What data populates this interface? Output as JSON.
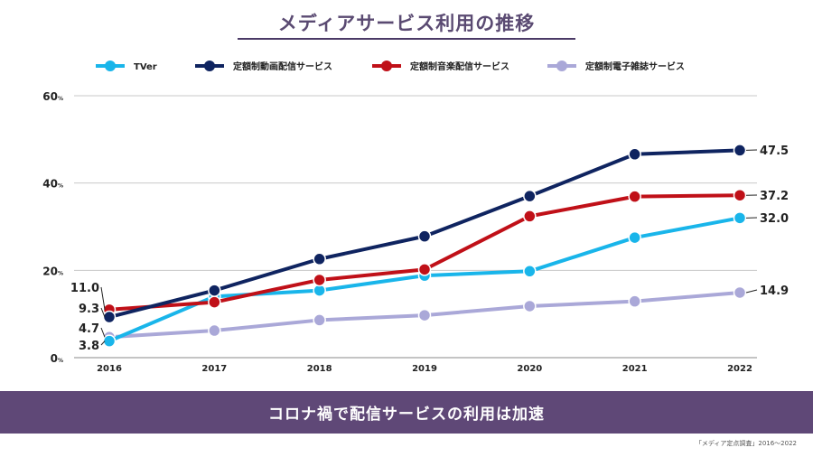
{
  "title": "メディアサービス利用の推移",
  "banner_text": "コロナ禍で配信サービスの利用は加速",
  "source_note": "「メディア定点調査」2016～2022",
  "chart_data": {
    "type": "line",
    "x": [
      "2016",
      "2017",
      "2018",
      "2019",
      "2020",
      "2021",
      "2022"
    ],
    "y_ticks": [
      {
        "value": 0,
        "label": "0",
        "unit": "%"
      },
      {
        "value": 20,
        "label": "20",
        "unit": "%"
      },
      {
        "value": 40,
        "label": "40",
        "unit": "%"
      },
      {
        "value": 60,
        "label": "60",
        "unit": "%"
      }
    ],
    "ylim": [
      0,
      60
    ],
    "grid": true,
    "legend_position": "top",
    "series": [
      {
        "name": "定額制電子雑誌サービス",
        "color": "#aaa8d8",
        "values": [
          4.7,
          6.2,
          8.6,
          9.7,
          11.8,
          12.9,
          14.9
        ],
        "labels": {
          "0": "4.7",
          "6": "14.9"
        }
      },
      {
        "name": "TVer",
        "color": "#19b5ea",
        "values": [
          3.8,
          14.0,
          15.4,
          18.8,
          19.8,
          27.5,
          32.0
        ],
        "labels": {
          "0": "3.8",
          "6": "32.0"
        }
      },
      {
        "name": "定額制音楽配信サービス",
        "color": "#c01018",
        "values": [
          11.0,
          12.7,
          17.8,
          20.2,
          32.4,
          36.9,
          37.2
        ],
        "labels": {
          "0": "11.0",
          "6": "37.2"
        }
      },
      {
        "name": "定額制動画配信サービス",
        "color": "#0f2460",
        "values": [
          9.3,
          15.4,
          22.6,
          27.8,
          37.0,
          46.6,
          47.5
        ],
        "labels": {
          "0": "9.3",
          "6": "47.5"
        }
      }
    ],
    "legend_order": [
      "TVer",
      "定額制動画配信サービス",
      "定額制音楽配信サービス",
      "定額制電子雑誌サービス"
    ]
  }
}
